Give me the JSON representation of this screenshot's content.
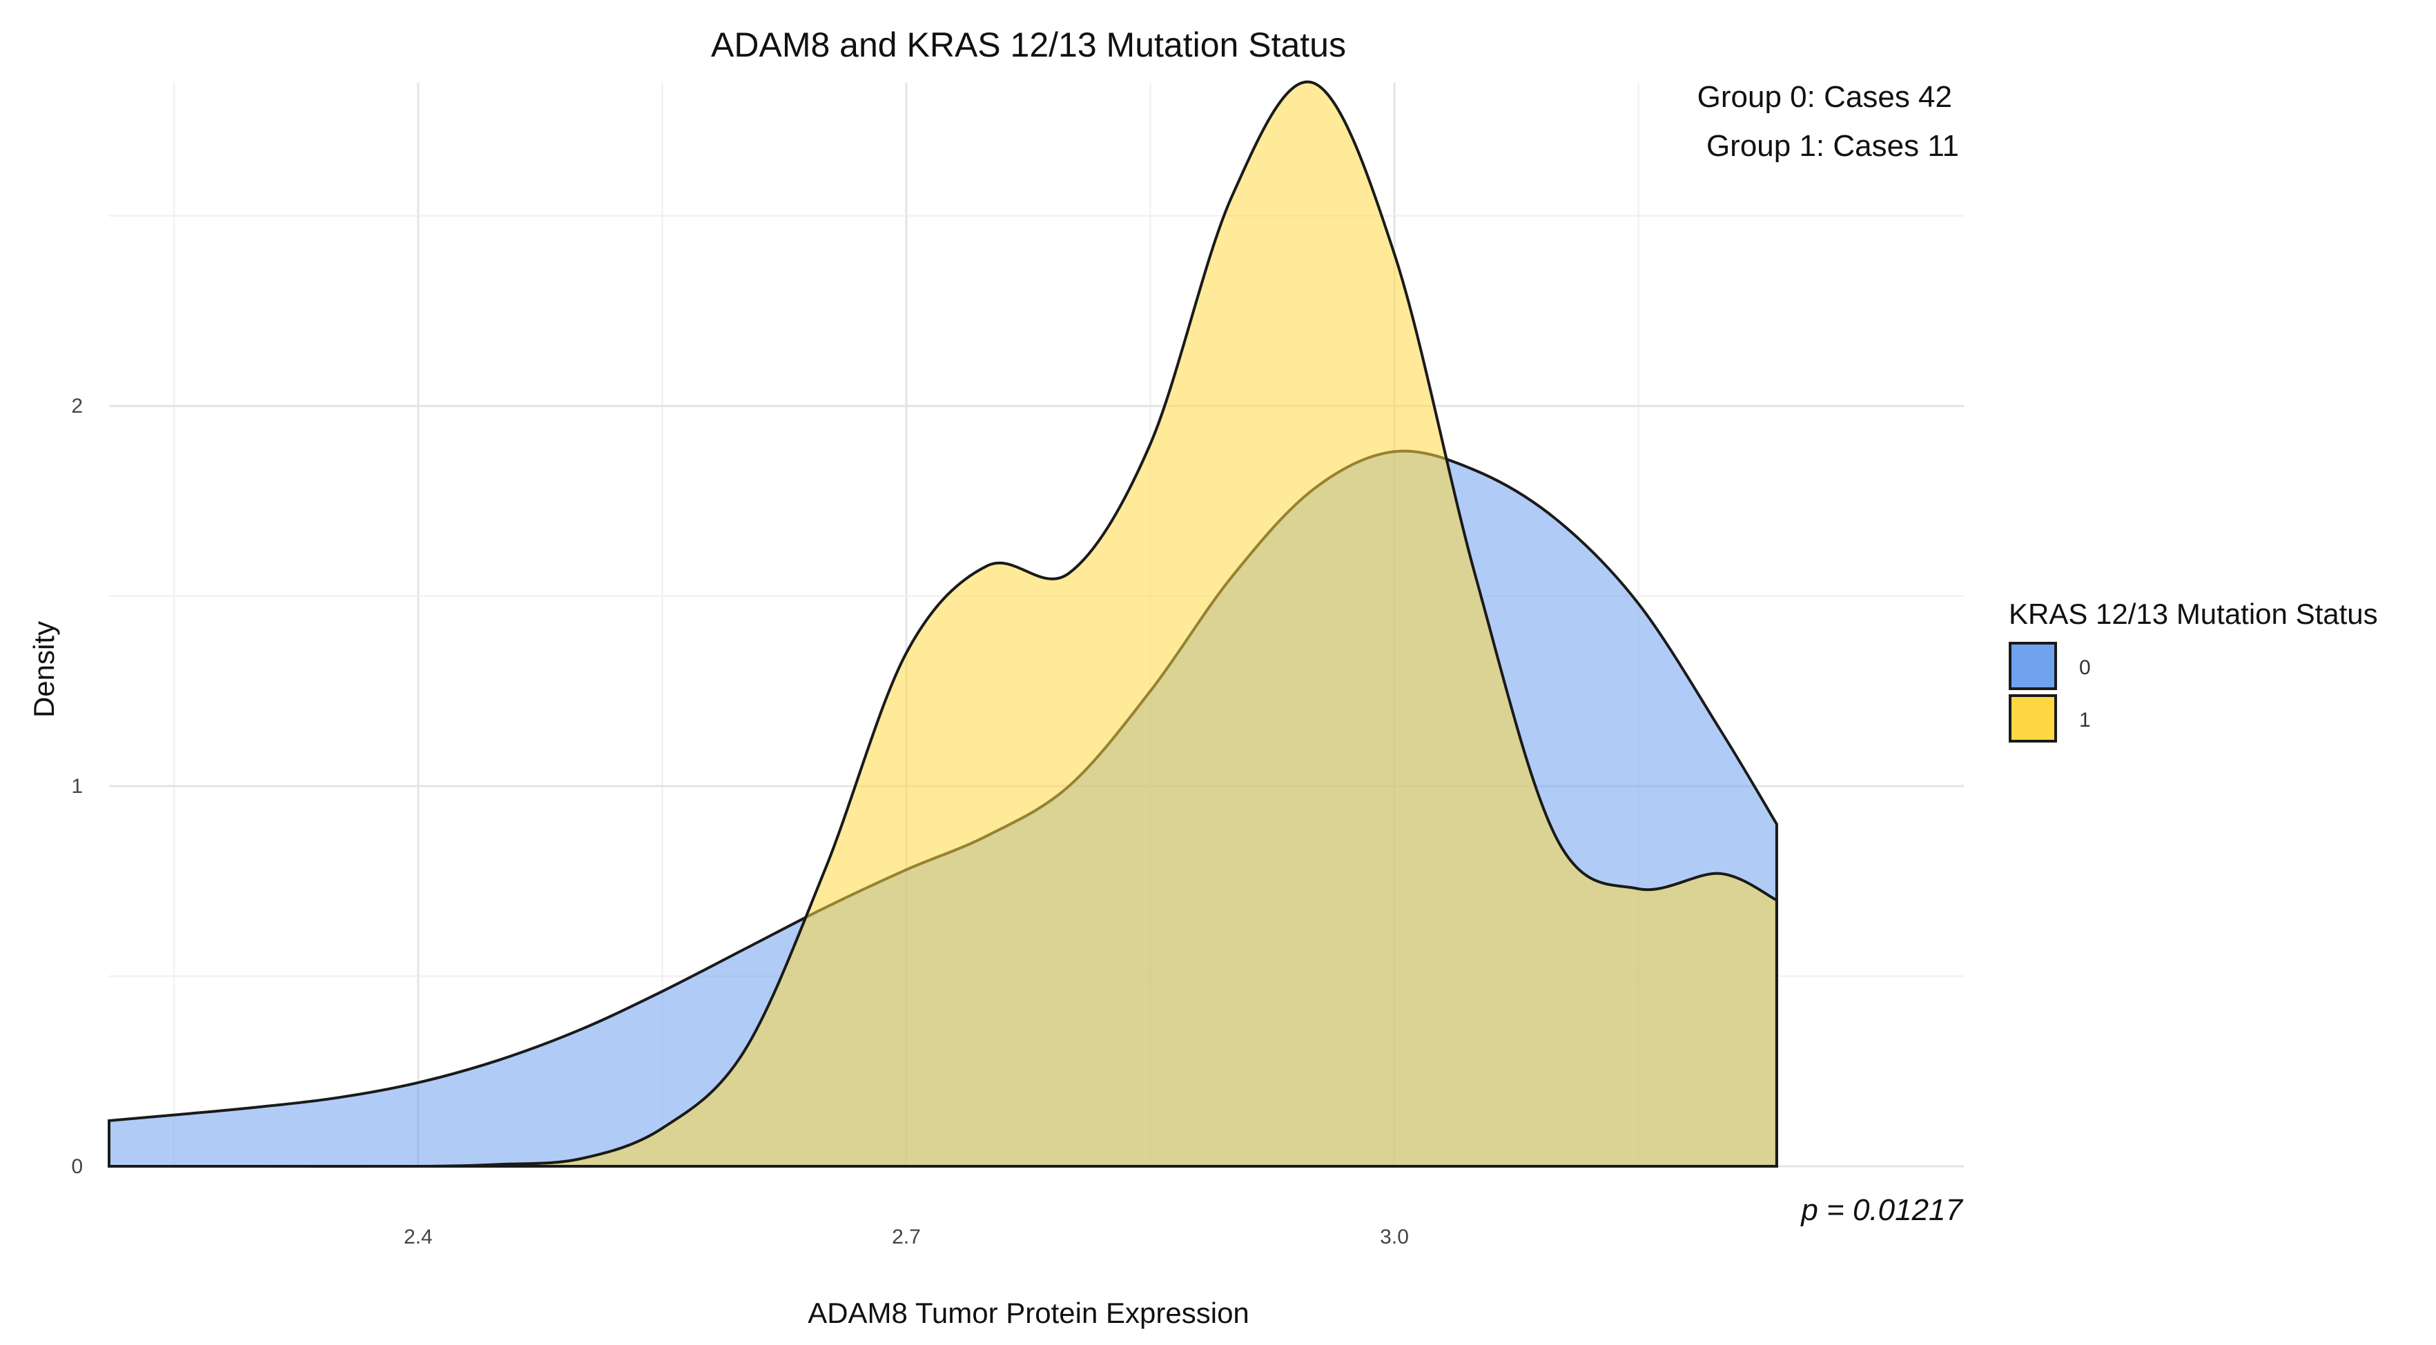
{
  "chart_data": {
    "type": "area",
    "title": "ADAM8 and KRAS 12/13 Mutation Status",
    "xlabel": "ADAM8 Tumor Protein Expression",
    "ylabel": "Density",
    "xlim": [
      2.21,
      3.35
    ],
    "ylim": [
      0,
      2.85
    ],
    "x_ticks": [
      2.4,
      2.7,
      3.0
    ],
    "x_tick_labels": [
      "2.4",
      "2.7",
      "3.0"
    ],
    "y_ticks": [
      0,
      1,
      2
    ],
    "y_tick_labels": [
      "0",
      "1",
      "2"
    ],
    "grid": true,
    "annotations": [
      "Group 0: Cases 42",
      "Group 1: Cases 11"
    ],
    "p_value_text": "p = 0.01217",
    "legend": {
      "title": "KRAS 12/13 Mutation Status",
      "position": "right",
      "entries": [
        {
          "label": "0",
          "color": "#6fa3ee"
        },
        {
          "label": "1",
          "color": "#fdd843"
        }
      ]
    },
    "series": [
      {
        "name": "0",
        "color": "#6fa3ee",
        "x": [
          2.21,
          2.25,
          2.3,
          2.35,
          2.4,
          2.45,
          2.5,
          2.55,
          2.6,
          2.65,
          2.7,
          2.75,
          2.8,
          2.85,
          2.9,
          2.95,
          3.0,
          3.05,
          3.1,
          3.15,
          3.2,
          3.235
        ],
        "y": [
          0.12,
          0.135,
          0.155,
          0.18,
          0.22,
          0.28,
          0.36,
          0.46,
          0.57,
          0.68,
          0.78,
          0.87,
          1.0,
          1.25,
          1.55,
          1.78,
          1.88,
          1.83,
          1.7,
          1.48,
          1.15,
          0.9
        ]
      },
      {
        "name": "1",
        "color": "#fdd843",
        "x": [
          2.21,
          2.3,
          2.4,
          2.45,
          2.5,
          2.55,
          2.6,
          2.65,
          2.7,
          2.75,
          2.8,
          2.85,
          2.9,
          2.95,
          3.0,
          3.05,
          3.1,
          3.15,
          3.2,
          3.235
        ],
        "y": [
          0.0,
          0.0,
          0.0,
          0.005,
          0.02,
          0.1,
          0.3,
          0.78,
          1.35,
          1.58,
          1.56,
          1.9,
          2.55,
          2.85,
          2.4,
          1.55,
          0.86,
          0.73,
          0.77,
          0.7
        ]
      }
    ]
  }
}
